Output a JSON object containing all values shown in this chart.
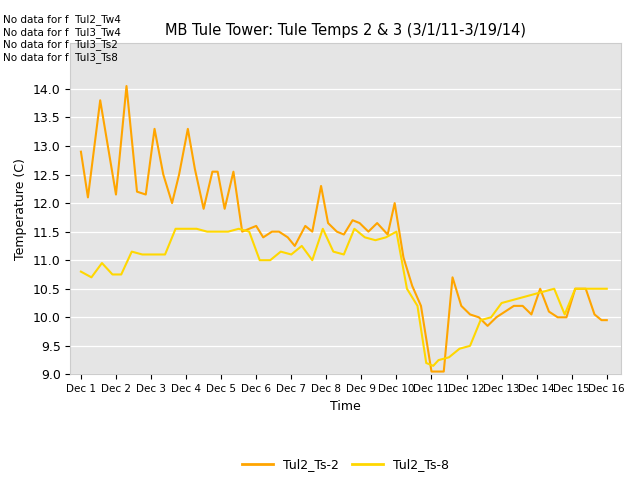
{
  "title": "MB Tule Tower: Tule Temps 2 & 3 (3/1/11-3/19/14)",
  "xlabel": "Time",
  "ylabel": "Temperature (C)",
  "ylim": [
    9.0,
    14.8
  ],
  "yticks": [
    9.0,
    9.5,
    10.0,
    10.5,
    11.0,
    11.5,
    12.0,
    12.5,
    13.0,
    13.5,
    14.0
  ],
  "background_color": "#e5e5e5",
  "no_data_lines": [
    "No data for f  Tul2_Tw4",
    "No data for f  Tul3_Tw4",
    "No data for f  Tul3_Ts2",
    "No data for f  Tul3_Ts8"
  ],
  "legend_labels": [
    "Tul2_Ts-2",
    "Tul2_Ts-8"
  ],
  "series1_color": "#FFA500",
  "series2_color": "#FFD700",
  "x_ticks_labels": [
    "Dec 1",
    "Dec 2",
    "Dec 3",
    "Dec 4",
    "Dec 5",
    "Dec 6",
    "Dec 7",
    "Dec 8",
    "Dec 9",
    "Dec 10",
    "Dec 11",
    "Dec 12",
    "Dec 13",
    "Dec 14",
    "Dec 15",
    "Dec 16"
  ],
  "series1_x": [
    1.0,
    1.2,
    1.55,
    2.0,
    2.3,
    2.6,
    2.85,
    3.1,
    3.35,
    3.6,
    3.8,
    4.05,
    4.25,
    4.5,
    4.75,
    4.9,
    5.1,
    5.35,
    5.6,
    5.8,
    6.0,
    6.2,
    6.45,
    6.65,
    6.9,
    7.1,
    7.4,
    7.6,
    7.85,
    8.05,
    8.3,
    8.5,
    8.75,
    8.95,
    9.2,
    9.45,
    9.75,
    9.95,
    10.2,
    10.45,
    10.7,
    11.0,
    11.35,
    11.6,
    11.85,
    12.1,
    12.35,
    12.6,
    12.85,
    13.1,
    13.35,
    13.6,
    13.85,
    14.1,
    14.35,
    14.6,
    14.85,
    15.1,
    15.4,
    15.65,
    15.85,
    16.0
  ],
  "series1_y": [
    12.9,
    12.1,
    13.8,
    12.15,
    14.05,
    12.2,
    12.15,
    13.3,
    12.5,
    12.0,
    12.5,
    13.3,
    12.6,
    11.9,
    12.55,
    12.55,
    11.9,
    12.55,
    11.5,
    11.55,
    11.6,
    11.4,
    11.5,
    11.5,
    11.4,
    11.25,
    11.6,
    11.5,
    12.3,
    11.65,
    11.5,
    11.45,
    11.7,
    11.65,
    11.5,
    11.65,
    11.45,
    12.0,
    11.05,
    10.55,
    10.2,
    9.05,
    9.05,
    10.7,
    10.2,
    10.05,
    10.0,
    9.85,
    10.0,
    10.1,
    10.2,
    10.2,
    10.05,
    10.5,
    10.1,
    10.0,
    10.0,
    10.5,
    10.5,
    10.05,
    9.95,
    9.95
  ],
  "series2_x": [
    1.0,
    1.3,
    1.6,
    1.9,
    2.15,
    2.45,
    2.75,
    3.1,
    3.4,
    3.7,
    4.0,
    4.3,
    4.6,
    4.9,
    5.2,
    5.5,
    5.8,
    6.1,
    6.4,
    6.7,
    7.0,
    7.3,
    7.6,
    7.9,
    8.2,
    8.5,
    8.8,
    9.1,
    9.4,
    9.7,
    10.0,
    10.3,
    10.6,
    10.85,
    11.05,
    11.2,
    11.5,
    11.8,
    12.1,
    12.4,
    12.7,
    13.0,
    13.3,
    13.6,
    13.9,
    14.2,
    14.5,
    14.8,
    15.1,
    15.4,
    15.7,
    16.0
  ],
  "series2_y": [
    10.8,
    10.7,
    10.95,
    10.75,
    10.75,
    11.15,
    11.1,
    11.1,
    11.1,
    11.55,
    11.55,
    11.55,
    11.5,
    11.5,
    11.5,
    11.55,
    11.5,
    11.0,
    11.0,
    11.15,
    11.1,
    11.25,
    11.0,
    11.55,
    11.15,
    11.1,
    11.55,
    11.4,
    11.35,
    11.4,
    11.5,
    10.5,
    10.2,
    9.2,
    9.15,
    9.25,
    9.3,
    9.45,
    9.5,
    9.95,
    10.0,
    10.25,
    10.3,
    10.35,
    10.4,
    10.45,
    10.5,
    10.05,
    10.5,
    10.5,
    10.5,
    10.5
  ]
}
